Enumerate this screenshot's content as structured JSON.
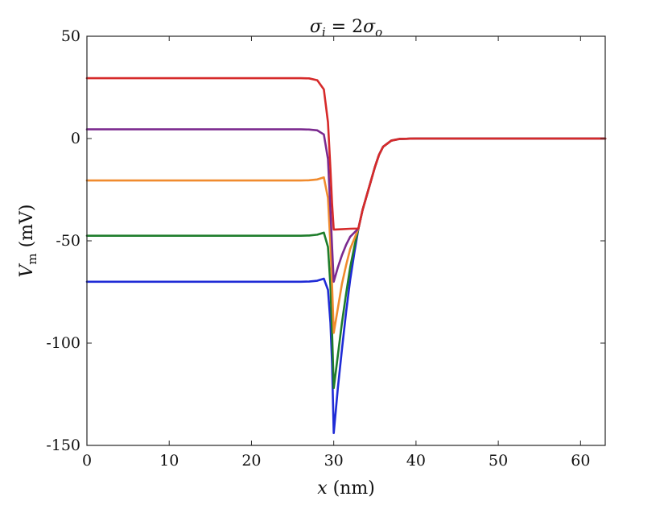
{
  "chart_data": {
    "type": "line",
    "title": "σ_i = 2σ_o",
    "title_parts": {
      "sigma1": "σ",
      "sub1": "i",
      "eq": " = 2",
      "sigma2": "σ",
      "sub2": "o"
    },
    "xlabel": "x (nm)",
    "xlabel_parts": {
      "var": "x",
      "unit": " (nm)"
    },
    "ylabel": "V_m (mV)",
    "ylabel_parts": {
      "var": "V",
      "sub": "m",
      "unit": " (mV)"
    },
    "xlim": [
      0,
      63
    ],
    "ylim": [
      -150,
      50
    ],
    "xticks": [
      0,
      10,
      20,
      30,
      40,
      50,
      60
    ],
    "yticks": [
      -150,
      -100,
      -50,
      0,
      50
    ],
    "ytick_labels": [
      "-150",
      "-100",
      "-50",
      "0",
      "50"
    ],
    "grid": false,
    "legend": "none",
    "series": [
      {
        "color": "#1f2bd6",
        "points": [
          [
            0,
            -70
          ],
          [
            26,
            -70
          ],
          [
            27,
            -69.9
          ],
          [
            28,
            -69.5
          ],
          [
            28.8,
            -68.5
          ],
          [
            29.3,
            -74
          ],
          [
            29.6,
            -90
          ],
          [
            29.8,
            -110
          ],
          [
            30,
            -144
          ],
          [
            30.5,
            -122
          ],
          [
            31,
            -103
          ],
          [
            31.5,
            -85
          ],
          [
            32,
            -69
          ],
          [
            32.5,
            -56
          ],
          [
            33,
            -44
          ],
          [
            33.5,
            -35
          ],
          [
            34,
            -28
          ],
          [
            34.5,
            -21
          ],
          [
            35,
            -14
          ],
          [
            35.5,
            -8
          ],
          [
            36,
            -4
          ],
          [
            37,
            -1
          ],
          [
            38,
            -0.2
          ],
          [
            40,
            0
          ],
          [
            63,
            0
          ]
        ]
      },
      {
        "color": "#1e7d2b",
        "points": [
          [
            0,
            -47.5
          ],
          [
            26,
            -47.5
          ],
          [
            27,
            -47.4
          ],
          [
            28,
            -47
          ],
          [
            28.8,
            -46
          ],
          [
            29.3,
            -53
          ],
          [
            29.6,
            -72
          ],
          [
            29.8,
            -95
          ],
          [
            30,
            -122
          ],
          [
            30.5,
            -106
          ],
          [
            31,
            -90
          ],
          [
            31.5,
            -76
          ],
          [
            32,
            -63
          ],
          [
            32.5,
            -53
          ],
          [
            33,
            -44
          ],
          [
            33.5,
            -35
          ],
          [
            34,
            -28
          ],
          [
            34.5,
            -21
          ],
          [
            35,
            -14
          ],
          [
            35.5,
            -8
          ],
          [
            36,
            -4
          ],
          [
            37,
            -1
          ],
          [
            38,
            -0.2
          ],
          [
            40,
            0
          ],
          [
            63,
            0
          ]
        ]
      },
      {
        "color": "#f08b2e",
        "points": [
          [
            0,
            -20.5
          ],
          [
            26,
            -20.5
          ],
          [
            27,
            -20.4
          ],
          [
            28,
            -20
          ],
          [
            28.8,
            -19
          ],
          [
            29.3,
            -29
          ],
          [
            29.6,
            -52
          ],
          [
            29.8,
            -72
          ],
          [
            30,
            -95
          ],
          [
            30.5,
            -83
          ],
          [
            31,
            -71
          ],
          [
            31.5,
            -62
          ],
          [
            32,
            -54
          ],
          [
            32.5,
            -49
          ],
          [
            33,
            -44
          ],
          [
            33.5,
            -35
          ],
          [
            34,
            -28
          ],
          [
            34.5,
            -21
          ],
          [
            35,
            -14
          ],
          [
            35.5,
            -8
          ],
          [
            36,
            -4
          ],
          [
            37,
            -1
          ],
          [
            38,
            -0.2
          ],
          [
            40,
            0
          ],
          [
            63,
            0
          ]
        ]
      },
      {
        "color": "#7b2a8f",
        "points": [
          [
            0,
            4.5
          ],
          [
            26,
            4.5
          ],
          [
            27,
            4.4
          ],
          [
            28,
            4
          ],
          [
            28.8,
            2
          ],
          [
            29.3,
            -10
          ],
          [
            29.6,
            -35
          ],
          [
            29.8,
            -53
          ],
          [
            30,
            -70
          ],
          [
            30.5,
            -63
          ],
          [
            31,
            -57
          ],
          [
            31.5,
            -52
          ],
          [
            32,
            -48
          ],
          [
            32.5,
            -46
          ],
          [
            33,
            -44
          ],
          [
            33.5,
            -35
          ],
          [
            34,
            -28
          ],
          [
            34.5,
            -21
          ],
          [
            35,
            -14
          ],
          [
            35.5,
            -8
          ],
          [
            36,
            -4
          ],
          [
            37,
            -1
          ],
          [
            38,
            -0.2
          ],
          [
            40,
            0
          ],
          [
            63,
            0
          ]
        ]
      },
      {
        "color": "#d62a2a",
        "points": [
          [
            0,
            29.5
          ],
          [
            26,
            29.5
          ],
          [
            27,
            29.4
          ],
          [
            28,
            28.5
          ],
          [
            28.8,
            24
          ],
          [
            29.3,
            8
          ],
          [
            29.6,
            -15
          ],
          [
            29.8,
            -32
          ],
          [
            30,
            -44.5
          ],
          [
            31,
            -44.3
          ],
          [
            32,
            -44.1
          ],
          [
            33,
            -44
          ],
          [
            33.5,
            -35
          ],
          [
            34,
            -28
          ],
          [
            34.5,
            -21
          ],
          [
            35,
            -14
          ],
          [
            35.5,
            -8
          ],
          [
            36,
            -4
          ],
          [
            37,
            -1
          ],
          [
            38,
            -0.2
          ],
          [
            40,
            0
          ],
          [
            63,
            0
          ]
        ]
      }
    ]
  }
}
